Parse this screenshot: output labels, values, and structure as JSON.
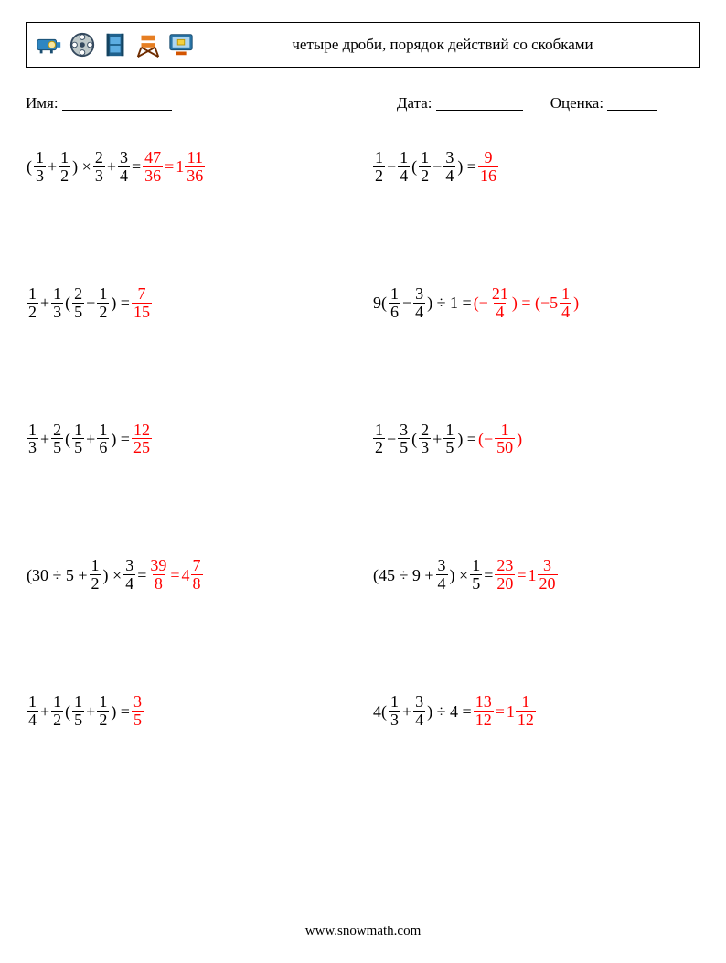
{
  "header": {
    "title": "четыре дроби, порядок действий со скобками"
  },
  "meta": {
    "name_label": "Имя:",
    "date_label": "Дата:",
    "score_label": "Оценка:",
    "name_blank_w": 120,
    "date_blank_w": 95,
    "score_blank_w": 55
  },
  "footer": "www.snowmath.com",
  "colors": {
    "answer": "#ff0000",
    "text": "#000000",
    "background": "#ffffff"
  },
  "problems": [
    {
      "tokens": [
        {
          "t": "("
        },
        {
          "f": [
            1,
            3
          ]
        },
        {
          "t": " + "
        },
        {
          "f": [
            1,
            2
          ]
        },
        {
          "t": ") × "
        },
        {
          "f": [
            2,
            3
          ]
        },
        {
          "t": " + "
        },
        {
          "f": [
            3,
            4
          ]
        },
        {
          "t": " = "
        },
        {
          "f": [
            47,
            36
          ],
          "ans": true
        },
        {
          "t": " = ",
          "ans": true
        },
        {
          "m": [
            1,
            11,
            36
          ],
          "ans": true
        }
      ]
    },
    {
      "tokens": [
        {
          "f": [
            1,
            2
          ]
        },
        {
          "t": " − "
        },
        {
          "f": [
            1,
            4
          ]
        },
        {
          "t": "("
        },
        {
          "f": [
            1,
            2
          ]
        },
        {
          "t": " − "
        },
        {
          "f": [
            3,
            4
          ]
        },
        {
          "t": ") = "
        },
        {
          "f": [
            9,
            16
          ],
          "ans": true
        }
      ]
    },
    {
      "tokens": [
        {
          "f": [
            1,
            2
          ]
        },
        {
          "t": " + "
        },
        {
          "f": [
            1,
            3
          ]
        },
        {
          "t": "("
        },
        {
          "f": [
            2,
            5
          ]
        },
        {
          "t": " − "
        },
        {
          "f": [
            1,
            2
          ]
        },
        {
          "t": ") = "
        },
        {
          "f": [
            7,
            15
          ],
          "ans": true
        }
      ]
    },
    {
      "tokens": [
        {
          "t": "9("
        },
        {
          "f": [
            1,
            6
          ]
        },
        {
          "t": " − "
        },
        {
          "f": [
            3,
            4
          ]
        },
        {
          "t": ") ÷ 1 = "
        },
        {
          "t": "(−",
          "ans": true
        },
        {
          "f": [
            21,
            4
          ],
          "ans": true
        },
        {
          "t": ") = (−5",
          "ans": true
        },
        {
          "f": [
            1,
            4
          ],
          "ans": true
        },
        {
          "t": ")",
          "ans": true
        }
      ]
    },
    {
      "tokens": [
        {
          "f": [
            1,
            3
          ]
        },
        {
          "t": " + "
        },
        {
          "f": [
            2,
            5
          ]
        },
        {
          "t": "("
        },
        {
          "f": [
            1,
            5
          ]
        },
        {
          "t": " + "
        },
        {
          "f": [
            1,
            6
          ]
        },
        {
          "t": ") = "
        },
        {
          "f": [
            12,
            25
          ],
          "ans": true
        }
      ]
    },
    {
      "tokens": [
        {
          "f": [
            1,
            2
          ]
        },
        {
          "t": " − "
        },
        {
          "f": [
            3,
            5
          ]
        },
        {
          "t": "("
        },
        {
          "f": [
            2,
            3
          ]
        },
        {
          "t": " + "
        },
        {
          "f": [
            1,
            5
          ]
        },
        {
          "t": ") = "
        },
        {
          "t": "(−",
          "ans": true
        },
        {
          "f": [
            1,
            50
          ],
          "ans": true
        },
        {
          "t": ")",
          "ans": true
        }
      ]
    },
    {
      "tokens": [
        {
          "t": "(30 ÷ 5 + "
        },
        {
          "f": [
            1,
            2
          ]
        },
        {
          "t": ") × "
        },
        {
          "f": [
            3,
            4
          ]
        },
        {
          "t": " = "
        },
        {
          "f": [
            39,
            8
          ],
          "ans": true
        },
        {
          "t": " = ",
          "ans": true
        },
        {
          "m": [
            4,
            7,
            8
          ],
          "ans": true
        }
      ]
    },
    {
      "tokens": [
        {
          "t": "(45 ÷ 9 + "
        },
        {
          "f": [
            3,
            4
          ]
        },
        {
          "t": ") × "
        },
        {
          "f": [
            1,
            5
          ]
        },
        {
          "t": " = "
        },
        {
          "f": [
            23,
            20
          ],
          "ans": true
        },
        {
          "t": " = ",
          "ans": true
        },
        {
          "m": [
            1,
            3,
            20
          ],
          "ans": true
        }
      ]
    },
    {
      "tokens": [
        {
          "f": [
            1,
            4
          ]
        },
        {
          "t": " + "
        },
        {
          "f": [
            1,
            2
          ]
        },
        {
          "t": "("
        },
        {
          "f": [
            1,
            5
          ]
        },
        {
          "t": " + "
        },
        {
          "f": [
            1,
            2
          ]
        },
        {
          "t": ") = "
        },
        {
          "f": [
            3,
            5
          ],
          "ans": true
        }
      ]
    },
    {
      "tokens": [
        {
          "t": "4("
        },
        {
          "f": [
            1,
            3
          ]
        },
        {
          "t": " + "
        },
        {
          "f": [
            3,
            4
          ]
        },
        {
          "t": ") ÷ 4 = "
        },
        {
          "f": [
            13,
            12
          ],
          "ans": true
        },
        {
          "t": " = ",
          "ans": true
        },
        {
          "m": [
            1,
            1,
            12
          ],
          "ans": true
        }
      ]
    }
  ]
}
